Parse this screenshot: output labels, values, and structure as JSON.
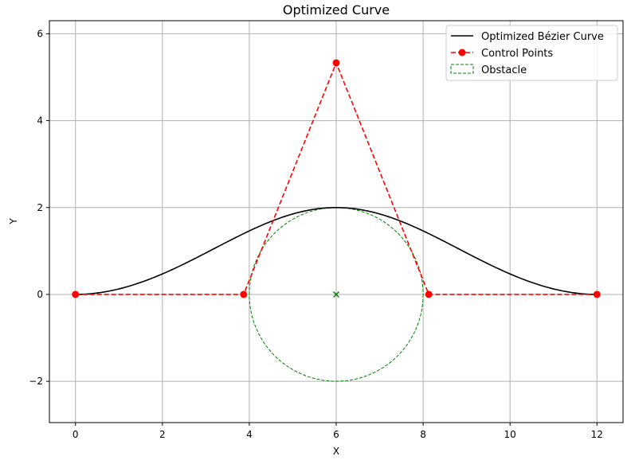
{
  "chart_data": {
    "type": "line",
    "title": "Optimized Curve",
    "xlabel": "X",
    "ylabel": "Y",
    "xlim": [
      -0.6,
      12.6
    ],
    "ylim": [
      -2.95,
      6.3
    ],
    "xticks": [
      0,
      2,
      4,
      6,
      8,
      10,
      12
    ],
    "yticks": [
      -2,
      0,
      2,
      4,
      6
    ],
    "grid": true,
    "legend_position": "top-right",
    "series": [
      {
        "name": "Optimized Bézier Curve",
        "color": "#000000",
        "style": "solid",
        "kind": "cubic-bezier-through-control-points"
      },
      {
        "name": "Control Points",
        "color": "#ff0000",
        "style": "dashed",
        "marker": "circle",
        "points": [
          [
            0,
            0
          ],
          [
            3.87,
            0
          ],
          [
            6.0,
            5.33
          ],
          [
            8.13,
            0
          ],
          [
            12,
            0
          ]
        ]
      }
    ],
    "obstacle": {
      "name": "Obstacle",
      "color": "#008000",
      "center": [
        6,
        0
      ],
      "radius": 2,
      "style": "dashed",
      "center_marker": "x"
    }
  }
}
